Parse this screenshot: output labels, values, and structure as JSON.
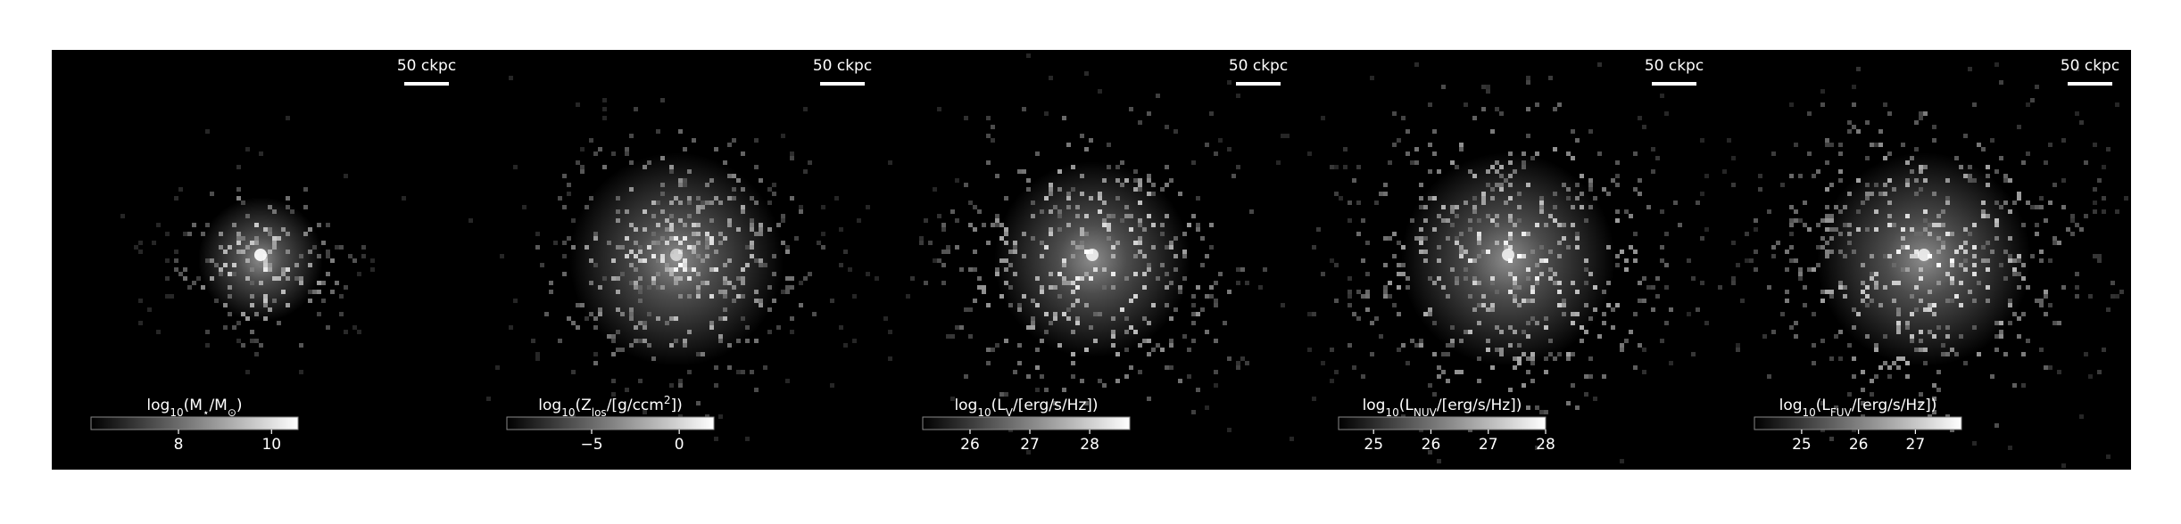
{
  "chart_data": [
    {
      "type": "heatmap",
      "scalebar_label": "50 ckpc",
      "colorbar_label": [
        {
          "text": "log"
        },
        {
          "text": "10",
          "pos": "sub"
        },
        {
          "text": "(M"
        },
        {
          "text": "⋆",
          "pos": "sub"
        },
        {
          "text": "/M"
        },
        {
          "text": "⊙",
          "pos": "sub"
        },
        {
          "text": ")"
        }
      ],
      "clim": [
        6.12,
        10.57
      ],
      "cticks": [
        8,
        10
      ]
    },
    {
      "type": "heatmap",
      "scalebar_label": "50 ckpc",
      "colorbar_label": [
        {
          "text": "log"
        },
        {
          "text": "10",
          "pos": "sub"
        },
        {
          "text": "(Z"
        },
        {
          "text": "los",
          "pos": "sub"
        },
        {
          "text": "/[g/ccm"
        },
        {
          "text": "2",
          "pos": "sup"
        },
        {
          "text": "])"
        }
      ],
      "clim": [
        -9.84,
        1.98
      ],
      "cticks": [
        {
          "value": -5,
          "label": "−5"
        },
        0
      ]
    },
    {
      "type": "heatmap",
      "scalebar_label": "50 ckpc",
      "colorbar_label": [
        {
          "text": "log"
        },
        {
          "text": "10",
          "pos": "sub"
        },
        {
          "text": "(L"
        },
        {
          "text": "V",
          "pos": "sub"
        },
        {
          "text": "/[erg/s/Hz])"
        }
      ],
      "clim": [
        25.21,
        28.67
      ],
      "cticks": [
        26,
        27,
        28
      ]
    },
    {
      "type": "heatmap",
      "scalebar_label": "50 ckpc",
      "colorbar_label": [
        {
          "text": "log"
        },
        {
          "text": "10",
          "pos": "sub"
        },
        {
          "text": "(L"
        },
        {
          "text": "NUV",
          "pos": "sub"
        },
        {
          "text": "/[erg/s/Hz])"
        }
      ],
      "clim": [
        24.39,
        28
      ],
      "cticks": [
        25,
        26,
        27,
        28
      ]
    },
    {
      "type": "heatmap",
      "scalebar_label": "50 ckpc",
      "colorbar_label": [
        {
          "text": "log"
        },
        {
          "text": "10",
          "pos": "sub"
        },
        {
          "text": "(L"
        },
        {
          "text": "FUV",
          "pos": "sub"
        },
        {
          "text": "/[erg/s/Hz])"
        }
      ],
      "clim": [
        24.17,
        27.81
      ],
      "cticks": [
        25,
        26,
        27
      ]
    }
  ]
}
